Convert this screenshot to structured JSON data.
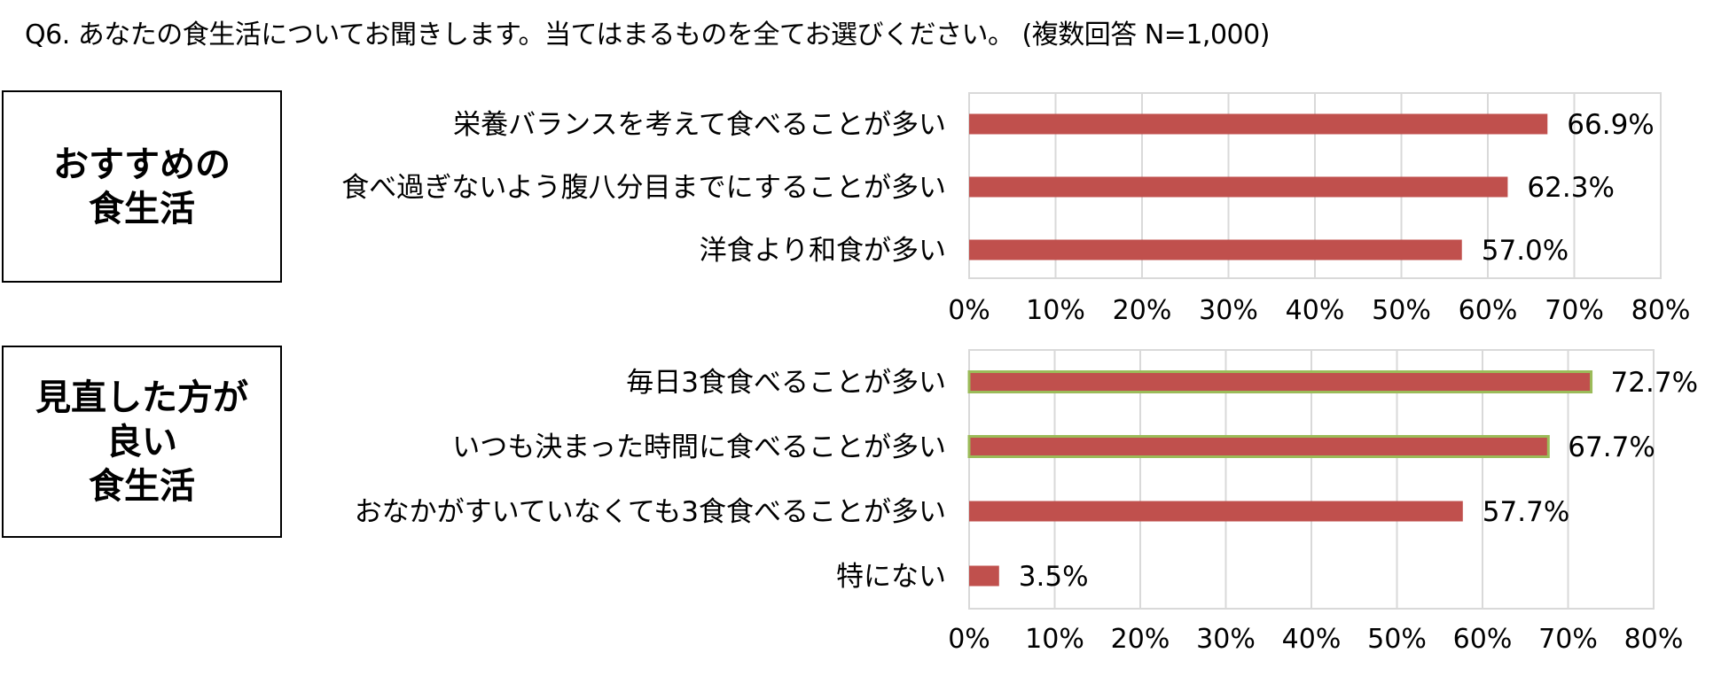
{
  "question": "Q6. あなたの食生活についてお聞きします。当てはまるものを全てお選びください。 (複数回答 N=1,000)",
  "groups": [
    {
      "lines": [
        "おすすめの",
        "食生活"
      ]
    },
    {
      "lines": [
        "見直した方が",
        "良い",
        "食生活"
      ]
    }
  ],
  "colors": {
    "bar": "#C0504D",
    "highlight_border": "#9BBB59",
    "grid": "#D9D9D9"
  },
  "chart_data": [
    {
      "type": "bar",
      "orientation": "horizontal",
      "categories": [
        "栄養バランスを考えて食べることが多い",
        "食べ過ぎないよう腹八分目までにすることが多い",
        "洋食より和食が多い"
      ],
      "values": [
        66.9,
        62.3,
        57.0
      ],
      "value_labels": [
        "66.9%",
        "62.3%",
        "57.0%"
      ],
      "xlim": [
        0,
        80
      ],
      "xticks": [
        "0%",
        "10%",
        "20%",
        "30%",
        "40%",
        "50%",
        "60%",
        "70%",
        "80%"
      ],
      "highlighted": [
        false,
        false,
        false
      ],
      "grid": true
    },
    {
      "type": "bar",
      "orientation": "horizontal",
      "categories": [
        "毎日3食食べることが多い",
        "いつも決まった時間に食べることが多い",
        "おなかがすいていなくても3食食べることが多い",
        "特にない"
      ],
      "values": [
        72.7,
        67.7,
        57.7,
        3.5
      ],
      "value_labels": [
        "72.7%",
        "67.7%",
        "57.7%",
        "3.5%"
      ],
      "xlim": [
        0,
        80
      ],
      "xticks": [
        "0%",
        "10%",
        "20%",
        "30%",
        "40%",
        "50%",
        "60%",
        "70%",
        "80%"
      ],
      "highlighted": [
        true,
        true,
        false,
        false
      ],
      "grid": true
    }
  ]
}
